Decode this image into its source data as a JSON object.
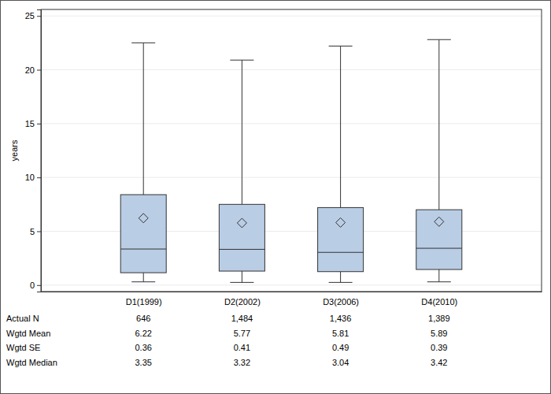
{
  "chart_data": {
    "type": "box",
    "y_label": "years",
    "categories": [
      "D1(1999)",
      "D2(2002)",
      "D3(2006)",
      "D4(2010)"
    ],
    "whisker_low": [
      0.3,
      0.25,
      0.25,
      0.3
    ],
    "q1": [
      1.15,
      1.3,
      1.25,
      1.45
    ],
    "q3": [
      8.4,
      7.5,
      7.2,
      7.0
    ],
    "whisker_high": [
      22.5,
      20.9,
      22.2,
      22.8
    ],
    "color": "#b9cde5",
    "ylim": [
      -0.6,
      25.6
    ],
    "yticks": [
      0,
      5,
      10,
      15,
      20,
      25
    ],
    "grid": true,
    "stats": [
      {
        "label": "Actual N",
        "values": [
          646,
          1484,
          1436,
          1389
        ],
        "value_labels": [
          "646",
          "1,484",
          "1,436",
          "1,389"
        ]
      },
      {
        "label": "Wgtd Mean",
        "values": [
          6.22,
          5.77,
          5.81,
          5.89
        ]
      },
      {
        "label": "Wgtd SE",
        "values": [
          0.36,
          0.41,
          0.49,
          0.39
        ]
      },
      {
        "label": "Wgtd Median",
        "values": [
          3.35,
          3.32,
          3.04,
          3.42
        ]
      }
    ]
  }
}
